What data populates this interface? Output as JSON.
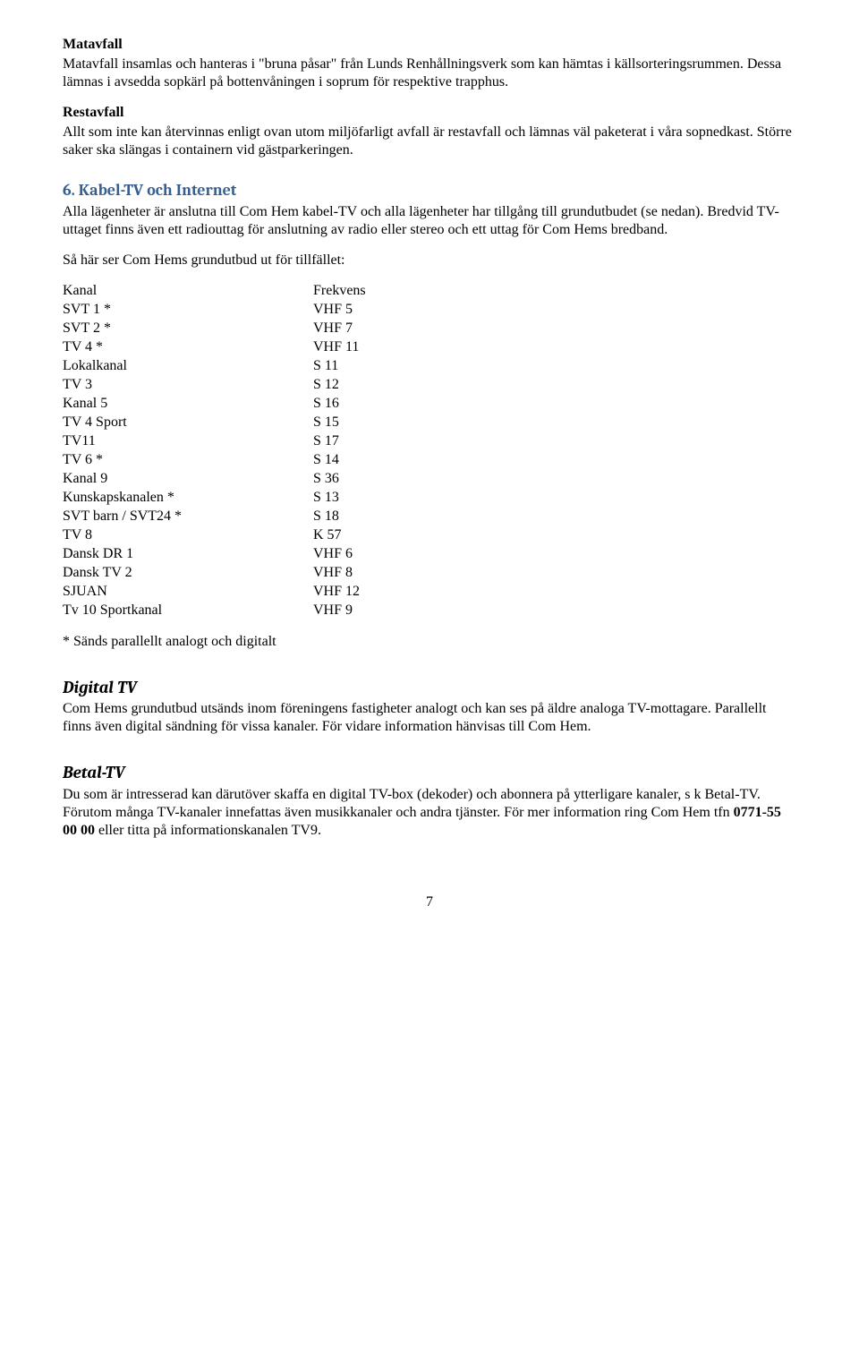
{
  "colors": {
    "heading": "#365f91",
    "text": "#000000",
    "background": "#ffffff"
  },
  "typography": {
    "body_font": "Times New Roman",
    "heading_font": "Cambria",
    "body_size_pt": 12,
    "heading_size_pt": 13
  },
  "matavfall": {
    "title": "Matavfall",
    "body": "Matavfall insamlas och hanteras i \"bruna påsar\" från Lunds Renhållningsverk som kan hämtas i källsorteringsrummen. Dessa lämnas i avsedda sopkärl på bottenvåningen i soprum för respektive trapphus."
  },
  "restavfall": {
    "title": "Restavfall",
    "body": "Allt som inte kan återvinnas enligt ovan utom miljöfarligt avfall är restavfall och lämnas väl paketerat i våra sopnedkast. Större saker ska slängas i containern vid gästparkeringen."
  },
  "kabeltv": {
    "title": "6. Kabel-TV och Internet",
    "intro": "Alla lägenheter är anslutna till Com Hem kabel-TV och alla lägenheter har tillgång till grundutbudet (se nedan). Bredvid TV-uttaget finns även ett radiouttag för anslutning av radio eller stereo och ett uttag för Com Hems bredband.",
    "list_intro": "Så här ser Com Hems grundutbud ut för tillfället:",
    "header": {
      "channel": "Kanal",
      "freq": "Frekvens"
    },
    "rows": [
      {
        "channel": "SVT 1 *",
        "freq": "VHF 5"
      },
      {
        "channel": "SVT 2 *",
        "freq": "VHF 7"
      },
      {
        "channel": "TV 4 *",
        "freq": "VHF 11"
      },
      {
        "channel": "Lokalkanal",
        "freq": "S 11"
      },
      {
        "channel": "TV 3",
        "freq": "S 12"
      },
      {
        "channel": "Kanal 5",
        "freq": "S 16"
      },
      {
        "channel": "TV 4 Sport",
        "freq": "S 15"
      },
      {
        "channel": "TV11",
        "freq": "S 17"
      },
      {
        "channel": "TV 6 *",
        "freq": "S 14"
      },
      {
        "channel": "Kanal 9",
        "freq": " S 36"
      },
      {
        "channel": "Kunskapskanalen *",
        "freq": " S 13"
      },
      {
        "channel": "SVT barn / SVT24 *",
        "freq": " S 18"
      },
      {
        "channel": "TV 8",
        "freq": " K 57"
      },
      {
        "channel": "Dansk DR 1",
        "freq": "VHF 6"
      },
      {
        "channel": "Dansk TV 2",
        "freq": "VHF 8"
      },
      {
        "channel": "SJUAN",
        "freq": "VHF 12"
      },
      {
        "channel": "Tv 10 Sportkanal",
        "freq": "VHF 9"
      }
    ],
    "footnote": "* Sänds  parallellt analogt och digitalt"
  },
  "digitaltv": {
    "title": "Digital TV",
    "body": "Com Hems grundutbud utsänds inom föreningens fastigheter analogt och kan ses på äldre analoga TV-mottagare. Parallellt finns även digital sändning för vissa kanaler. För vidare information hänvisas till Com Hem."
  },
  "betaltv": {
    "title": "Betal-TV",
    "body_pre": "Du som är intresserad kan därutöver skaffa en digital TV-box (dekoder) och abonnera på ytterligare kanaler, s k Betal-TV. Förutom många TV-kanaler innefattas även musikkanaler och andra tjänster. För mer information ring Com Hem tfn ",
    "phone": "0771-55 00 00",
    "body_post": " eller titta på informationskanalen TV9."
  },
  "page_number": "7"
}
